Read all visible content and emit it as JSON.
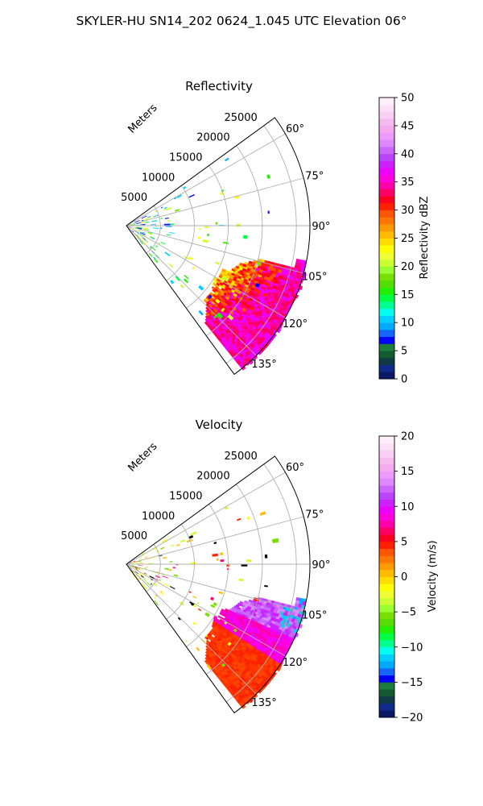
{
  "figure": {
    "suptitle": "SKYLER-HU  SN14_202  0624_1.045 UTC Elevation 06°"
  },
  "chart_data": [
    {
      "type": "heatmap",
      "projection": "polar-sector",
      "title": "Reflectivity",
      "radial_label": "Meters",
      "radial_ticks": [
        "5000",
        "10000",
        "15000",
        "20000",
        "25000"
      ],
      "range_max_m": 27000,
      "angle_range_deg": [
        54,
        144
      ],
      "angle_ticks": [
        "60°",
        "75°",
        "90°",
        "105°",
        "120°",
        "135°"
      ],
      "grid": true,
      "colorbar": {
        "label": "Reflectivity dBZ",
        "range": [
          0,
          50
        ],
        "ticks": [
          "0",
          "5",
          "10",
          "15",
          "20",
          "25",
          "30",
          "35",
          "40",
          "45",
          "50"
        ],
        "colors": [
          "#0a1866",
          "#102a8c",
          "#0f3a46",
          "#145a32",
          "#1e7d3c",
          "#0000ff",
          "#1466ff",
          "#00aaff",
          "#00d0ff",
          "#00ffee",
          "#00ff90",
          "#00ff44",
          "#22ee00",
          "#55dd00",
          "#77e000",
          "#99ff33",
          "#ccff33",
          "#eeff33",
          "#ffff00",
          "#ffdd00",
          "#ffbb00",
          "#ff9900",
          "#ff7700",
          "#ff5500",
          "#ff2200",
          "#ff0022",
          "#ff0066",
          "#ff00aa",
          "#ff00dd",
          "#ee00ff",
          "#cc22ff",
          "#bb44ff",
          "#cc66ff",
          "#dd88ff",
          "#ee99ff",
          "#f3aaee",
          "#f6bbee",
          "#f9d0f3",
          "#fbe0f7",
          "#fff0fb"
        ]
      }
    },
    {
      "type": "heatmap",
      "projection": "polar-sector",
      "title": "Velocity",
      "radial_label": "Meters",
      "radial_ticks": [
        "5000",
        "10000",
        "15000",
        "20000",
        "25000"
      ],
      "range_max_m": 27000,
      "angle_range_deg": [
        54,
        144
      ],
      "angle_ticks": [
        "60°",
        "75°",
        "90°",
        "105°",
        "120°",
        "135°"
      ],
      "grid": true,
      "colorbar": {
        "label": "Velocity (m/s)",
        "range": [
          -20,
          20
        ],
        "ticks": [
          "−20",
          "−15",
          "−10",
          "−5",
          "0",
          "5",
          "10",
          "15",
          "20"
        ],
        "colors": [
          "#0a1866",
          "#102a8c",
          "#0f3a46",
          "#145a32",
          "#1e7d3c",
          "#0000ff",
          "#1466ff",
          "#00aaff",
          "#00d0ff",
          "#00ffee",
          "#00ff90",
          "#00ff44",
          "#22ee00",
          "#55dd00",
          "#77e000",
          "#99ff33",
          "#ccff33",
          "#eeff33",
          "#ffff00",
          "#ffdd00",
          "#ffbb00",
          "#ff9900",
          "#ff7700",
          "#ff5500",
          "#ff2200",
          "#ff0022",
          "#ff0066",
          "#ff00aa",
          "#ff00dd",
          "#ee00ff",
          "#cc22ff",
          "#bb44ff",
          "#cc66ff",
          "#dd88ff",
          "#ee99ff",
          "#f3aaee",
          "#f6bbee",
          "#f9d0f3",
          "#fbe0f7",
          "#fff0fb"
        ]
      }
    }
  ]
}
